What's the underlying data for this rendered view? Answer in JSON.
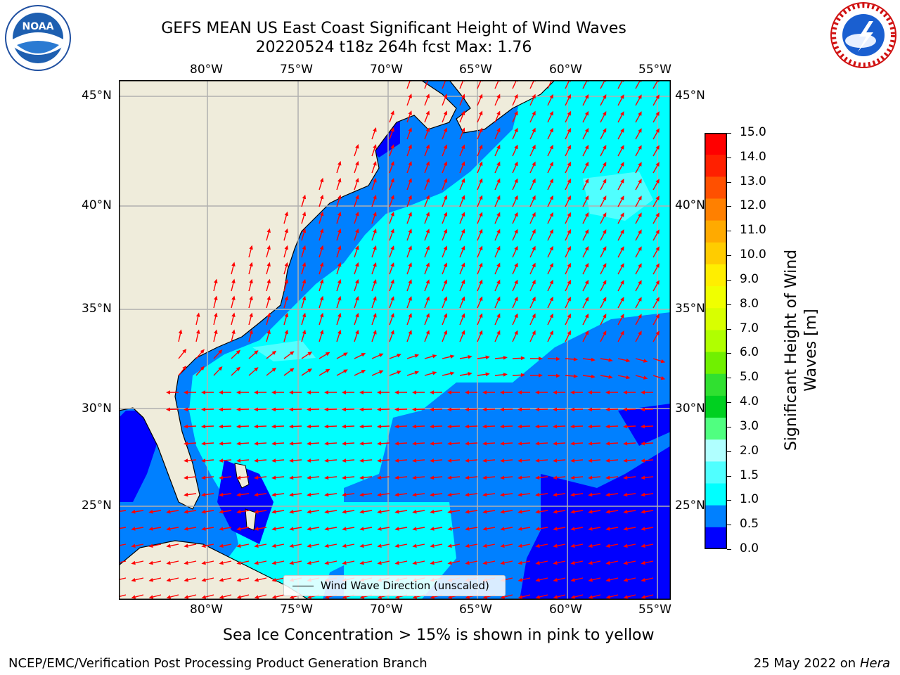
{
  "title": {
    "line1": "GEFS MEAN US East Coast Significant Height of Wind Waves",
    "line2": "20220524 t18z 264h fcst   Max: 1.76"
  },
  "map": {
    "lon_ticks": [
      "80°W",
      "75°W",
      "70°W",
      "65°W",
      "60°W",
      "55°W"
    ],
    "lat_ticks": [
      "45°N",
      "40°N",
      "35°N",
      "30°N",
      "25°N"
    ],
    "land_color": "#efecdb",
    "ocean_bg_color": "#0080ff",
    "arrow_color": "#ff0000"
  },
  "legend": {
    "label": "Wind Wave Direction (unscaled)"
  },
  "colorbar": {
    "title_line1": "Significant Height of Wind",
    "title_line2": "Waves [m]",
    "ticks": [
      "15.0",
      "14.0",
      "13.0",
      "12.0",
      "11.0",
      "10.0",
      "9.0",
      "8.0",
      "7.0",
      "6.0",
      "5.0",
      "4.0",
      "3.0",
      "2.0",
      "1.5",
      "1.0",
      "0.5",
      "0.0"
    ],
    "colors": [
      "#ff0000",
      "#ff2000",
      "#ff5000",
      "#ff8000",
      "#ffaa00",
      "#ffcc00",
      "#ffee00",
      "#f0ff00",
      "#d8ff00",
      "#b0ff00",
      "#70f000",
      "#30e030",
      "#00d020",
      "#50ff80",
      "#b0ffff",
      "#50ffff",
      "#00ffff",
      "#0080ff",
      "#0000ff"
    ]
  },
  "note": "Sea Ice Concentration > 15% is shown in pink to yellow",
  "footer": {
    "left": "NCEP/EMC/Verification Post Processing Product Generation Branch",
    "right_prefix": "25 May 2022 on",
    "right_italic": "Hera"
  },
  "logos": {
    "noaa_text": "NOAA",
    "nws_text": "NATIONAL WEATHER SERVICE"
  }
}
